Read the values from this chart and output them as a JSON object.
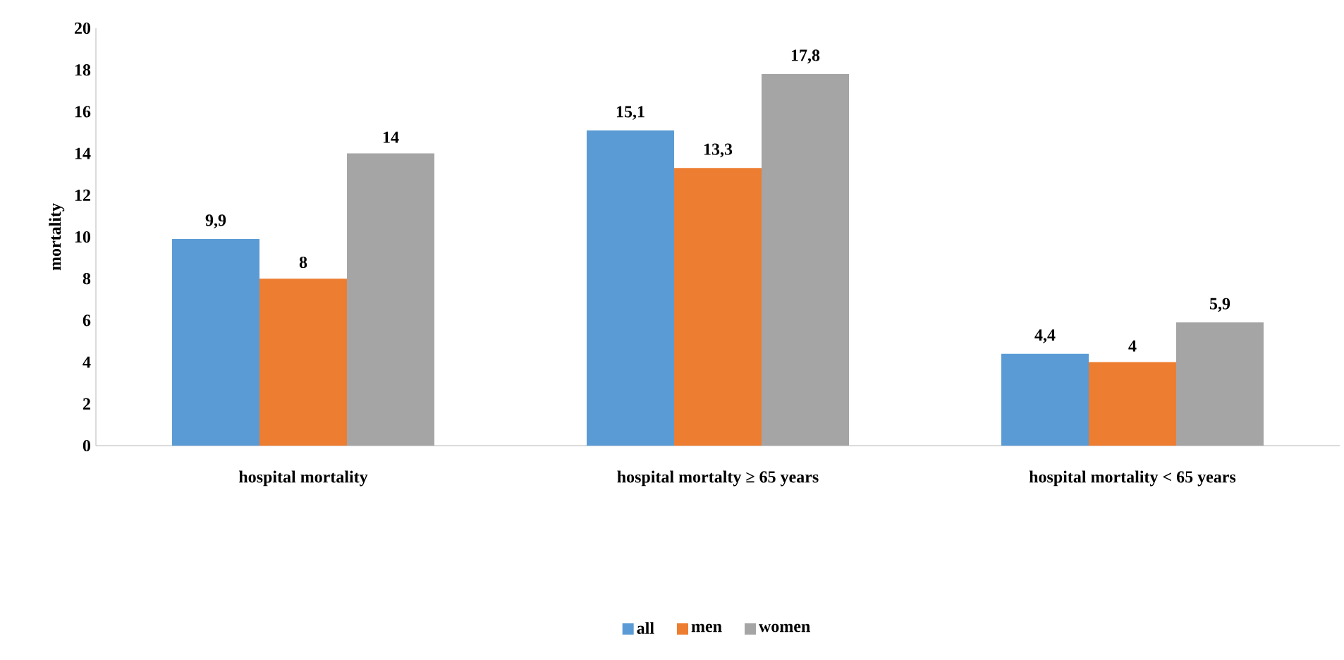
{
  "chart_data": {
    "type": "bar",
    "ylabel": "mortality",
    "categories": [
      "hospital mortality",
      "hospital mortalty ≥ 65 years",
      "hospital mortality < 65 years"
    ],
    "series": [
      {
        "name": "all",
        "color": "#5b9bd5",
        "values": [
          9.9,
          15.1,
          4.4
        ],
        "value_labels": [
          "9,9",
          "15,1",
          "4,4"
        ]
      },
      {
        "name": "men",
        "color": "#ed7d31",
        "values": [
          8,
          13.3,
          4
        ],
        "value_labels": [
          "8",
          "13,3",
          "4"
        ]
      },
      {
        "name": "women",
        "color": "#a5a5a5",
        "values": [
          14,
          17.8,
          5.9
        ],
        "value_labels": [
          "14",
          "17,8",
          "5,9"
        ]
      }
    ],
    "ylim": [
      0,
      20
    ],
    "yticks": [
      0,
      2,
      4,
      6,
      8,
      10,
      12,
      14,
      16,
      18,
      20
    ],
    "legend": "bottom"
  }
}
